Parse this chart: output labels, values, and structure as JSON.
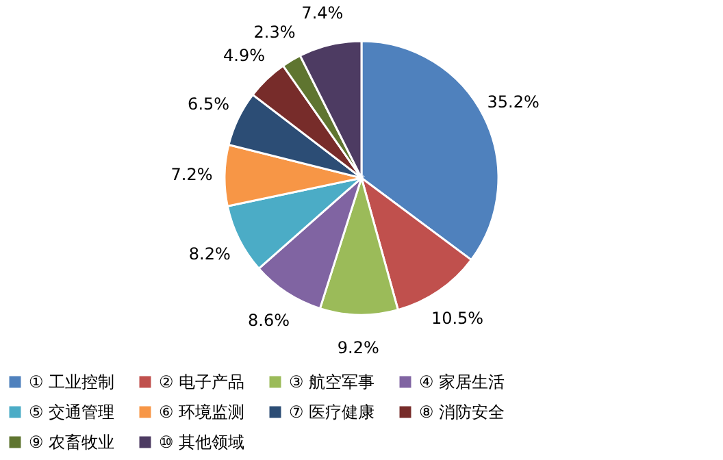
{
  "chart_data": {
    "type": "pie",
    "categories": [
      "① 工业控制",
      "② 电子产品",
      "③ 航空军事",
      "④ 家居生活",
      "⑤ 交通管理",
      "⑥ 环境监测",
      "⑦ 医疗健康",
      "⑧ 消防安全",
      "⑨ 农畜牧业",
      "⑩ 其他领域"
    ],
    "values": [
      35.2,
      10.5,
      9.2,
      8.6,
      8.2,
      7.2,
      6.5,
      4.9,
      2.3,
      7.4
    ],
    "colors": [
      "#4f81bd",
      "#c0504d",
      "#9bbb59",
      "#8064a2",
      "#4bacc6",
      "#f79646",
      "#2c4d75",
      "#772c2a",
      "#5f7530",
      "#4d3b62"
    ],
    "value_labels": [
      "35.2%",
      "10.5%",
      "9.2%",
      "8.6%",
      "8.2%",
      "7.2%",
      "6.5%",
      "4.9%",
      "2.3%",
      "7.4%"
    ],
    "legend": "bottom"
  }
}
